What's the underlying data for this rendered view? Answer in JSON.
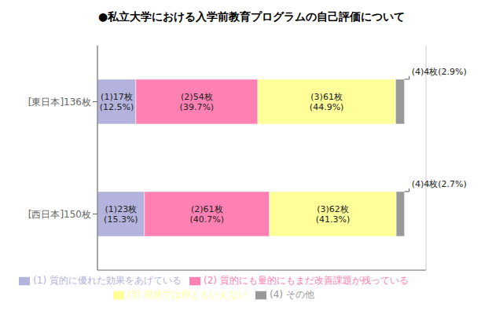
{
  "chart_data": {
    "type": "bar",
    "orientation": "horizontal",
    "stacked": true,
    "title": "●私立大学における入学前教育プログラムの自己評価について",
    "categories": [
      "[東日本]136枚",
      "[西日本]150枚"
    ],
    "series": [
      {
        "name": "(1) 質的に優れた効果をあげている",
        "color": "#b3b3dd",
        "values": [
          12.5,
          15.3
        ],
        "value_labels": [
          "(1)17枚\n(12.5%)",
          "(1)23枚\n(15.3%)"
        ]
      },
      {
        "name": "(2) 質的にも量的にもまだ改善課題が残っている",
        "color": "#ff80b3",
        "values": [
          39.7,
          40.7
        ],
        "value_labels": [
          "(2)54枚\n(39.7%)",
          "(2)61枚\n(40.7%)"
        ]
      },
      {
        "name": "(3) 現状では何ともいえない",
        "color": "#ffff99",
        "values": [
          44.9,
          41.3
        ],
        "value_labels": [
          "(3)61枚\n(44.9%)",
          "(3)62枚\n(41.3%)"
        ]
      },
      {
        "name": "(4) その他",
        "color": "#999999",
        "values": [
          2.9,
          2.7
        ],
        "value_labels": [
          "(4)4枚(2.9%)",
          "(4)4枚(2.7%)"
        ]
      }
    ],
    "xlim": [
      0,
      107
    ],
    "xticks": [
      0,
      25,
      50,
      75,
      100
    ],
    "grid": true,
    "legend": "bottom",
    "data_labels": true,
    "tick_labels": "y"
  }
}
